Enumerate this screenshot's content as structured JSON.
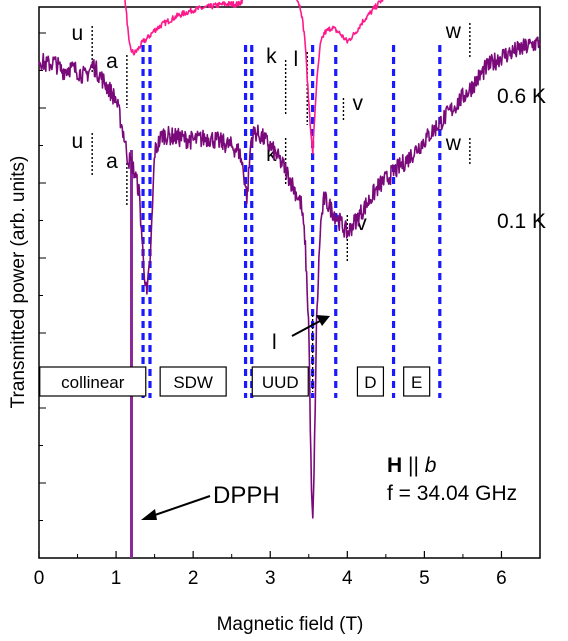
{
  "chart_data": {
    "type": "line",
    "title": "",
    "xlabel": "Magnetic field (T)",
    "ylabel": "Transmitted power (arb. units)",
    "xlim": [
      0,
      6.5
    ],
    "x_ticks": [
      "0",
      "1",
      "2",
      "3",
      "4",
      "5",
      "6"
    ],
    "grid": false,
    "legend": "none",
    "series": [
      {
        "name": "0.6 K",
        "color": "#ff1a8c",
        "offset": 2.75,
        "x": [
          0,
          0.1,
          0.2,
          0.3,
          0.4,
          0.5,
          0.6,
          0.7,
          0.8,
          0.9,
          1.0,
          1.05,
          1.1,
          1.14,
          1.17,
          1.2,
          1.23,
          1.26,
          1.3,
          1.35,
          1.4,
          1.5,
          1.6,
          1.8,
          2.0,
          2.2,
          2.4,
          2.6,
          2.65,
          2.7,
          2.75,
          2.8,
          2.9,
          3.0,
          3.1,
          3.2,
          3.3,
          3.4,
          3.45,
          3.5,
          3.55,
          3.6,
          3.65,
          3.7,
          3.8,
          3.9,
          4.0,
          4.1,
          4.2,
          4.4,
          4.6,
          4.8,
          5.0,
          5.2,
          5.4,
          5.6,
          5.8,
          6.0,
          6.2,
          6.4,
          6.5
        ],
        "y": [
          2.3,
          2.32,
          2.3,
          2.2,
          2.0,
          1.7,
          1.4,
          1.35,
          1.55,
          1.5,
          1.45,
          1.35,
          1.1,
          0.55,
          0.1,
          0.0,
          -0.05,
          -0.02,
          0.05,
          0.15,
          0.2,
          0.35,
          0.45,
          0.6,
          0.7,
          0.75,
          0.8,
          0.8,
          0.9,
          1.3,
          1.5,
          1.6,
          1.6,
          1.5,
          1.3,
          1.2,
          1.1,
          0.7,
          0.2,
          -0.9,
          -1.8,
          -0.6,
          0.1,
          0.3,
          0.4,
          0.3,
          0.15,
          0.3,
          0.5,
          0.8,
          1.1,
          1.4,
          1.7,
          1.95,
          2.2,
          2.4,
          2.6,
          2.75,
          2.9,
          3.0,
          3.05
        ]
      },
      {
        "name": "0.1 K",
        "color": "#7a0a7a",
        "offset": 0,
        "x": [
          0,
          0.1,
          0.2,
          0.3,
          0.4,
          0.5,
          0.6,
          0.7,
          0.8,
          0.9,
          1.0,
          1.05,
          1.1,
          1.15,
          1.2,
          1.25,
          1.3,
          1.35,
          1.4,
          1.45,
          1.5,
          1.6,
          1.8,
          2.0,
          2.2,
          2.4,
          2.5,
          2.6,
          2.65,
          2.7,
          2.75,
          2.8,
          2.9,
          3.0,
          3.1,
          3.2,
          3.3,
          3.4,
          3.45,
          3.5,
          3.53,
          3.55,
          3.57,
          3.6,
          3.65,
          3.7,
          3.8,
          3.9,
          4.0,
          4.1,
          4.2,
          4.4,
          4.6,
          4.8,
          5.0,
          5.2,
          5.4,
          5.6,
          5.8,
          6.0,
          6.2,
          6.4,
          6.5
        ],
        "y": [
          2.6,
          2.5,
          2.55,
          2.4,
          2.45,
          2.4,
          2.3,
          2.5,
          2.3,
          2.1,
          1.9,
          1.6,
          1.3,
          0.9,
          0.8,
          0.6,
          0.3,
          -0.8,
          -1.5,
          -0.7,
          1.0,
          1.3,
          1.25,
          1.2,
          1.25,
          1.15,
          1.1,
          1.0,
          0.7,
          0.2,
          1.2,
          1.35,
          1.25,
          1.1,
          0.9,
          0.7,
          0.4,
          0.1,
          -0.5,
          -2.0,
          -4.5,
          -5.5,
          -4.5,
          -2.0,
          -0.3,
          0.2,
          0.0,
          -0.2,
          -0.4,
          -0.2,
          0.0,
          0.4,
          0.65,
          0.9,
          1.2,
          1.5,
          1.8,
          2.1,
          2.45,
          2.65,
          2.75,
          2.85,
          2.9
        ]
      }
    ],
    "dpph": {
      "x": 1.2,
      "label": "DPPH"
    },
    "phase_boundaries_T": [
      1.35,
      1.44,
      2.68,
      2.76,
      3.55,
      3.85,
      4.6,
      5.2
    ],
    "peak_markers": {
      "top": [
        {
          "label": "u",
          "x": 0.69
        },
        {
          "label": "a",
          "x": 1.14
        },
        {
          "label": "k",
          "x": 3.2
        },
        {
          "label": "l",
          "x": 3.48
        },
        {
          "label": "v",
          "x": 3.95
        },
        {
          "label": "w",
          "x": 5.59
        }
      ],
      "bottom": [
        {
          "label": "u",
          "x": 0.69
        },
        {
          "label": "a",
          "x": 1.14
        },
        {
          "label": "k",
          "x": 3.2
        },
        {
          "label": "l",
          "x": 3.55
        },
        {
          "label": "v",
          "x": 4.0
        },
        {
          "label": "w",
          "x": 5.59
        }
      ]
    },
    "phases": [
      {
        "label": "collinear",
        "x": 0.49
      },
      {
        "label": "SDW",
        "x": 2.0
      },
      {
        "label": "UUD",
        "x": 3.13
      },
      {
        "label": "D",
        "x": 4.3
      },
      {
        "label": "E",
        "x": 4.9
      }
    ],
    "annotations": {
      "condition_bold": "H",
      "condition_rest": " || ",
      "condition_italic": "b",
      "frequency": "f = 34.04 GHz"
    }
  }
}
